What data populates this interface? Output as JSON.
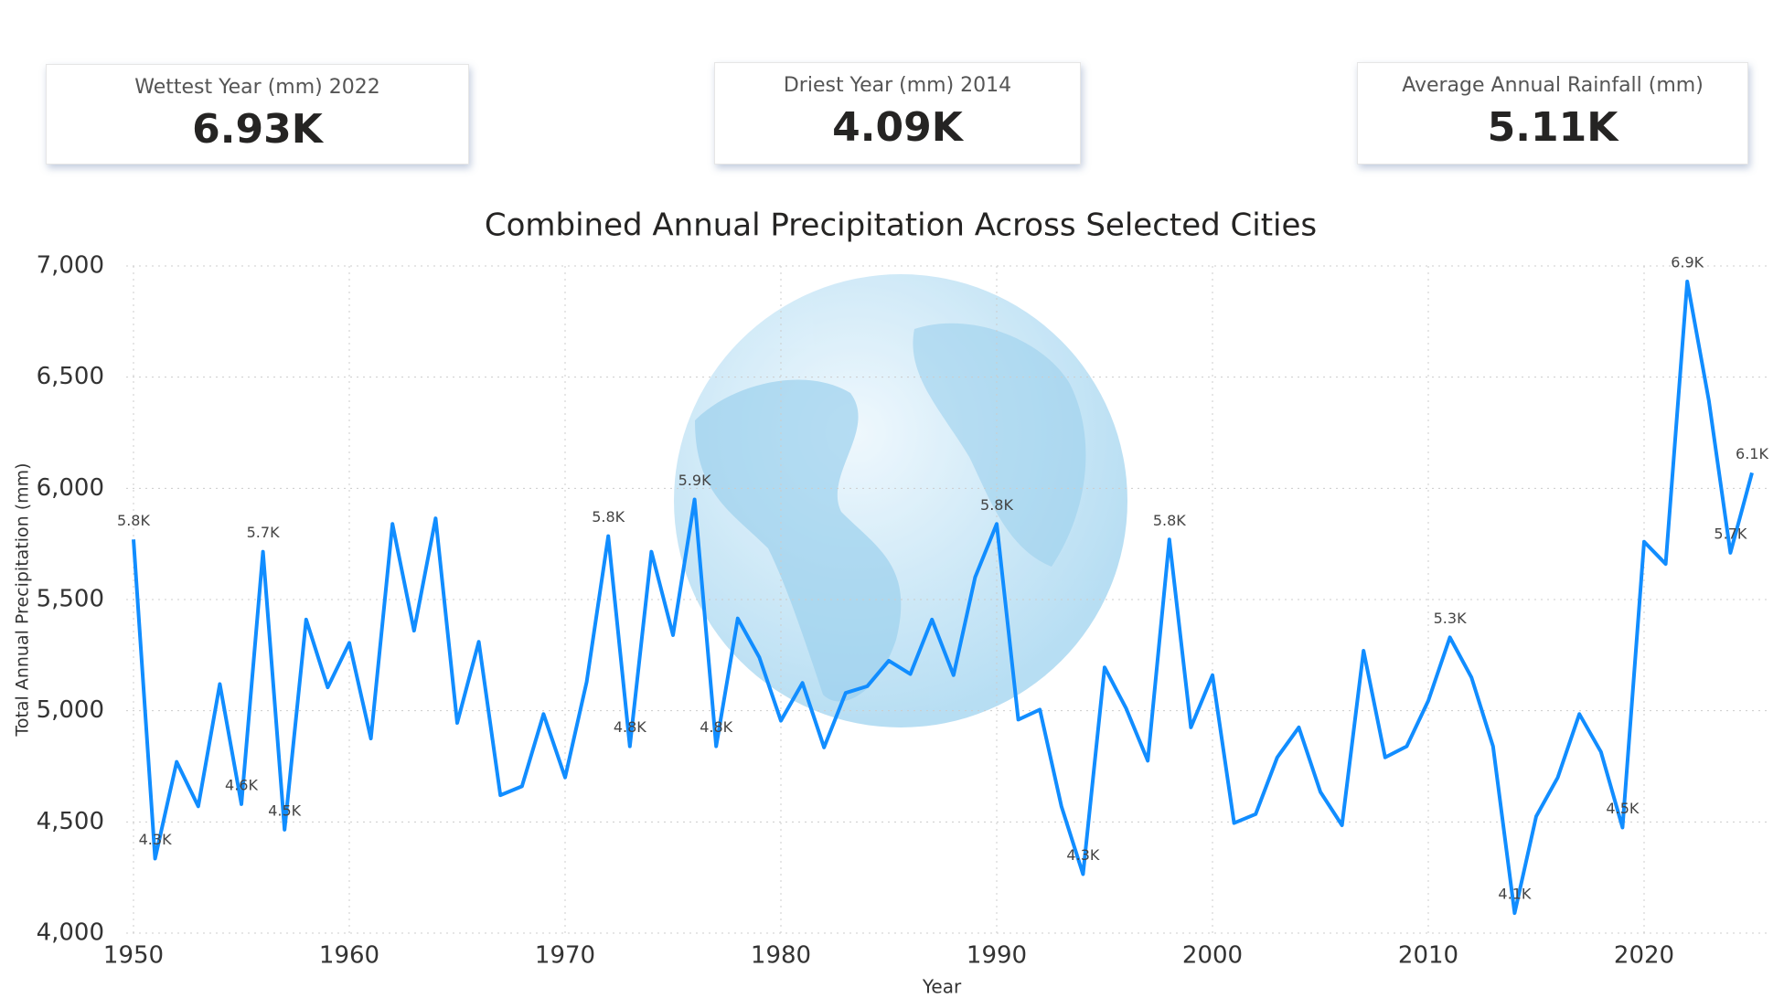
{
  "cards": [
    {
      "label": "Wettest Year (mm) 2022",
      "value": "6.93K"
    },
    {
      "label": "Driest Year (mm) 2014",
      "value": "4.09K"
    },
    {
      "label": "Average Annual Rainfall (mm)",
      "value": "5.11K"
    }
  ],
  "chart_data": {
    "type": "line",
    "title": "Combined Annual Precipitation Across Selected Cities",
    "x_label": "Year",
    "y_label": "Total Annual Precipitation (mm)",
    "x": [
      1950,
      1951,
      1952,
      1953,
      1954,
      1955,
      1956,
      1957,
      1958,
      1959,
      1960,
      1961,
      1962,
      1963,
      1964,
      1965,
      1966,
      1967,
      1968,
      1969,
      1970,
      1971,
      1972,
      1973,
      1974,
      1975,
      1976,
      1977,
      1978,
      1979,
      1980,
      1981,
      1982,
      1983,
      1984,
      1985,
      1986,
      1987,
      1988,
      1989,
      1990,
      1991,
      1992,
      1993,
      1994,
      1995,
      1996,
      1997,
      1998,
      1999,
      2000,
      2001,
      2002,
      2003,
      2004,
      2005,
      2006,
      2007,
      2008,
      2009,
      2010,
      2011,
      2012,
      2013,
      2014,
      2015,
      2016,
      2017,
      2018,
      2019,
      2020,
      2021,
      2022,
      2023,
      2024,
      2025
    ],
    "series": [
      {
        "name": "Total Annual Precipitation (mm)",
        "color": "#118dff",
        "values": [
          5770,
          4335,
          4770,
          4570,
          5120,
          4580,
          5715,
          4465,
          5410,
          5105,
          5305,
          4875,
          5840,
          5360,
          5865,
          4945,
          5310,
          4620,
          4660,
          4985,
          4700,
          5130,
          5785,
          4840,
          5715,
          5340,
          5950,
          4840,
          5415,
          5240,
          4955,
          5125,
          4835,
          5080,
          5110,
          5225,
          5165,
          5410,
          5160,
          5600,
          5840,
          4960,
          5005,
          4570,
          4265,
          5195,
          5010,
          4775,
          5770,
          4925,
          5160,
          4495,
          4535,
          4790,
          4925,
          4635,
          4485,
          5270,
          4790,
          4840,
          5045,
          5330,
          5150,
          4840,
          4090,
          4525,
          4700,
          4985,
          4815,
          4475,
          5760,
          5660,
          6930,
          6395,
          5710,
          6070
        ],
        "value_labels": [
          "5.8K",
          "4.3K",
          null,
          null,
          null,
          "4.6K",
          "5.7K",
          "4.5K",
          null,
          null,
          null,
          null,
          null,
          null,
          null,
          null,
          null,
          null,
          null,
          null,
          null,
          null,
          "5.8K",
          "4.8K",
          null,
          null,
          "5.9K",
          "4.8K",
          null,
          null,
          null,
          null,
          null,
          null,
          null,
          null,
          null,
          null,
          null,
          null,
          "5.8K",
          null,
          null,
          null,
          "4.3K",
          null,
          null,
          null,
          "5.8K",
          null,
          null,
          null,
          null,
          null,
          null,
          null,
          null,
          null,
          null,
          null,
          null,
          "5.3K",
          null,
          null,
          "4.1K",
          null,
          null,
          null,
          null,
          "4.5K",
          null,
          null,
          "6.9K",
          null,
          "5.7K",
          "6.1K"
        ]
      }
    ],
    "xlim": [
      1950,
      2025
    ],
    "xticks": [
      1950,
      1960,
      1970,
      1980,
      1990,
      2000,
      2010,
      2020
    ],
    "ylim": [
      4000,
      7000
    ],
    "yticks": [
      {
        "value": 4000,
        "label": "4,000"
      },
      {
        "value": 4500,
        "label": "4,500"
      },
      {
        "value": 5000,
        "label": "5,000"
      },
      {
        "value": 5500,
        "label": "5,500"
      },
      {
        "value": 6000,
        "label": "6,000"
      },
      {
        "value": 6500,
        "label": "6,500"
      },
      {
        "value": 7000,
        "label": "7,000"
      }
    ],
    "grid": true
  }
}
